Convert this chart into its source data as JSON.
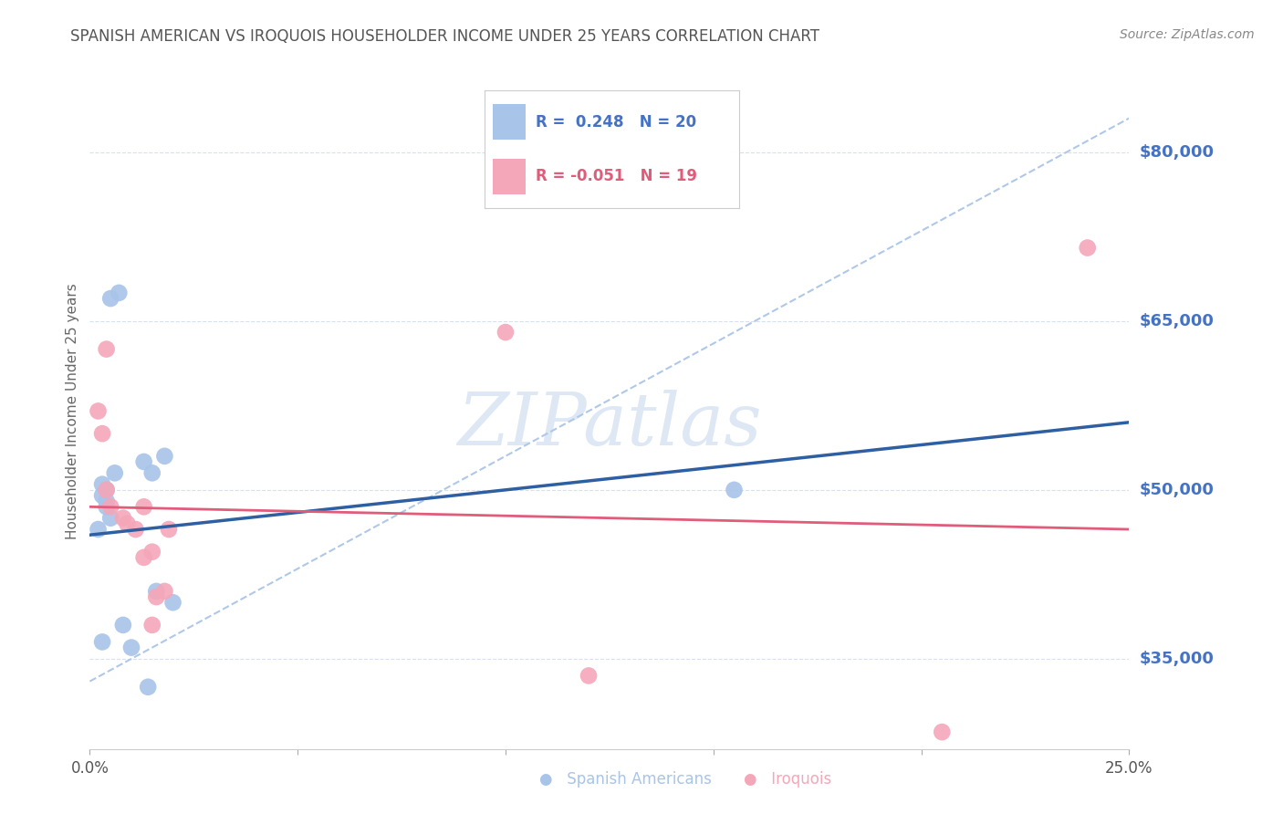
{
  "title": "SPANISH AMERICAN VS IROQUOIS HOUSEHOLDER INCOME UNDER 25 YEARS CORRELATION CHART",
  "source": "Source: ZipAtlas.com",
  "ylabel": "Householder Income Under 25 years",
  "xlim": [
    0.0,
    0.25
  ],
  "ylim": [
    27000,
    87000
  ],
  "yticks": [
    35000,
    50000,
    65000,
    80000
  ],
  "ytick_labels": [
    "$35,000",
    "$50,000",
    "$65,000",
    "$80,000"
  ],
  "watermark_text": "ZIPatlas",
  "blue_scatter_x": [
    0.002,
    0.003,
    0.003,
    0.003,
    0.004,
    0.004,
    0.004,
    0.005,
    0.005,
    0.006,
    0.007,
    0.008,
    0.01,
    0.013,
    0.014,
    0.015,
    0.016,
    0.018,
    0.02,
    0.155
  ],
  "blue_scatter_y": [
    46500,
    50500,
    49500,
    36500,
    49000,
    48500,
    50000,
    47500,
    67000,
    51500,
    67500,
    38000,
    36000,
    52500,
    32500,
    51500,
    41000,
    53000,
    40000,
    50000
  ],
  "pink_scatter_x": [
    0.002,
    0.003,
    0.004,
    0.004,
    0.005,
    0.008,
    0.009,
    0.011,
    0.013,
    0.013,
    0.015,
    0.015,
    0.016,
    0.018,
    0.019,
    0.1,
    0.12,
    0.205,
    0.24
  ],
  "pink_scatter_y": [
    57000,
    55000,
    50000,
    62500,
    48500,
    47500,
    47000,
    46500,
    48500,
    44000,
    44500,
    38000,
    40500,
    41000,
    46500,
    64000,
    33500,
    28500,
    71500
  ],
  "blue_line_x0": 0.0,
  "blue_line_x1": 0.25,
  "blue_line_y0": 46000,
  "blue_line_y1": 56000,
  "pink_line_x0": 0.0,
  "pink_line_x1": 0.25,
  "pink_line_y0": 48500,
  "pink_line_y1": 46500,
  "dash_line_x0": 0.0,
  "dash_line_x1": 0.25,
  "dash_line_y0": 33000,
  "dash_line_y1": 83000,
  "blue_line_color": "#2E5FA3",
  "pink_line_color": "#E05C7A",
  "blue_scatter_color": "#A8C4E8",
  "pink_scatter_color": "#F4A7B9",
  "dashed_line_color": "#B0C8E8",
  "grid_color": "#D8E0EE",
  "background_color": "#FFFFFF",
  "title_color": "#555555",
  "axis_label_color": "#666666",
  "ytick_color": "#4472C4",
  "source_color": "#888888",
  "legend_r1_color": "#4472C4",
  "legend_r2_color": "#E05C7A",
  "legend_r1": "R =  0.248   N = 20",
  "legend_r2": "R = -0.051   N = 19"
}
